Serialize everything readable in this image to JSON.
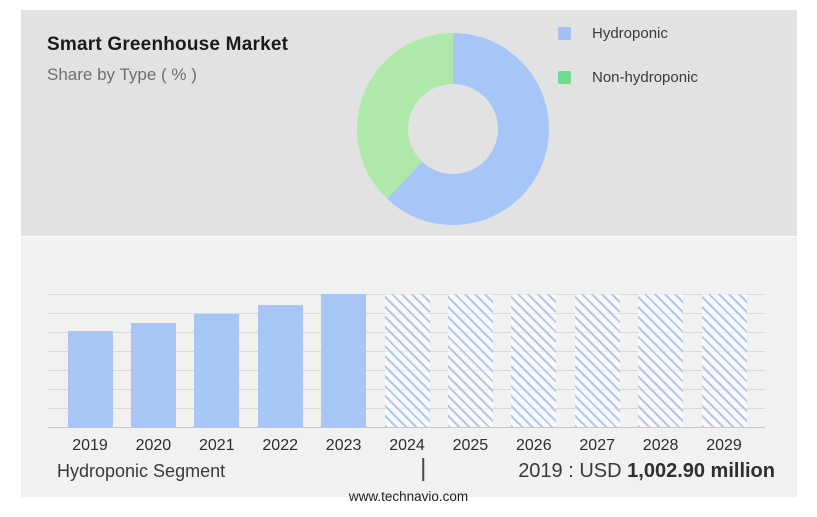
{
  "header": {
    "title": "Smart Greenhouse Market",
    "subtitle": "Share by Type ( % )"
  },
  "legend": {
    "items": [
      {
        "label": "Hydroponic",
        "swatch_color": "#9FC1F5"
      },
      {
        "label": "Non-hydroponic",
        "swatch_color": "#6FDB8C"
      }
    ]
  },
  "caption": {
    "segment": "Hydroponic Segment",
    "separator": "|",
    "value_prefix": "2019 : USD",
    "value_bold": "1,002.90 million"
  },
  "footer": {
    "url": "www.technavio.com"
  },
  "colors": {
    "top_panel_bg": "#E2E2E2",
    "bottom_panel_bg": "#F1F1F2",
    "donut_hydroponic": "#A6C6F7",
    "donut_non_hydroponic": "#AFE9A9",
    "legend_hydroponic": "#9FC1F5",
    "legend_non_hydroponic": "#6FDB8C",
    "bar_fill": "#A8C6F4",
    "hatch_line": "#B4C8EA",
    "hatch_bg": "rgba(255,255,255,0.55)",
    "gridline": "#D8D8D8",
    "axis_line": "#C6C6C8"
  },
  "chart_data": [
    {
      "type": "pie",
      "style": "donut",
      "title": "Smart Greenhouse Market - Share by Type ( % )",
      "labels": [
        "Hydroponic",
        "Non-hydroponic"
      ],
      "values": [
        62,
        38
      ],
      "colors": [
        "#A6C6F7",
        "#AFE9A9"
      ],
      "legend_position": "right",
      "start_angle_deg": 0,
      "direction": "clockwise"
    },
    {
      "type": "bar",
      "title": "Hydroponic Segment",
      "categories": [
        "2019",
        "2020",
        "2021",
        "2022",
        "2023",
        "2024",
        "2025",
        "2026",
        "2027",
        "2028",
        "2029"
      ],
      "bar_height_fractions": [
        0.72,
        0.78,
        0.85,
        0.92,
        1.0,
        1.0,
        1.0,
        1.0,
        1.0,
        1.0,
        1.0
      ],
      "bar_styles": [
        "solid",
        "solid",
        "solid",
        "solid",
        "solid",
        "hatched",
        "hatched",
        "hatched",
        "hatched",
        "hatched",
        "hatched"
      ],
      "known_values": {
        "2019": "USD 1,002.90 million"
      },
      "estimated_values_usd_million": [
        1002.9,
        1086,
        1181,
        1285,
        1390,
        null,
        null,
        null,
        null,
        null,
        null
      ],
      "forecast_years": [
        "2024",
        "2025",
        "2026",
        "2027",
        "2028",
        "2029"
      ],
      "xlabel": "",
      "ylabel": "",
      "grid": true,
      "gridline_count": 8,
      "legend_position": "none"
    }
  ]
}
